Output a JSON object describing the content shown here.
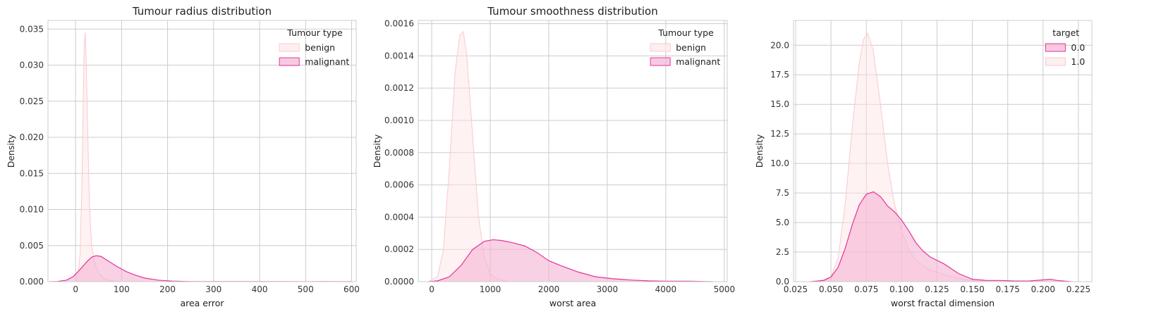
{
  "colors": {
    "benign_fill": "#fde2e4",
    "benign_line": "#f9c9cf",
    "malignant_fill": "#f5b3d4",
    "malignant_line": "#e3359a",
    "grid": "#cccccc",
    "frame": "#cccccc",
    "background": "#ffffff"
  },
  "chart_data": [
    {
      "type": "area",
      "title": "Tumour radius distribution",
      "xlabel": "area error",
      "ylabel": "Density",
      "xlim": [
        -60,
        610
      ],
      "ylim": [
        0,
        0.0362
      ],
      "xticks": [
        0,
        100,
        200,
        300,
        400,
        500,
        600
      ],
      "xtick_labels": [
        "0",
        "100",
        "200",
        "300",
        "400",
        "500",
        "600"
      ],
      "yticks": [
        0,
        0.005,
        0.01,
        0.015,
        0.02,
        0.025,
        0.03,
        0.035
      ],
      "ytick_labels": [
        "0.000",
        "0.005",
        "0.010",
        "0.015",
        "0.020",
        "0.025",
        "0.030",
        "0.035"
      ],
      "grid": true,
      "legend": {
        "title": "Tumour type",
        "position": "top-right",
        "entries": [
          "benign",
          "malignant"
        ]
      },
      "series": [
        {
          "name": "benign",
          "role": "benign",
          "x": [
            0,
            5,
            10,
            14,
            17,
            19,
            21,
            23,
            26,
            30,
            35,
            42,
            50,
            60,
            70,
            80,
            100
          ],
          "y": [
            0,
            0.0006,
            0.004,
            0.014,
            0.026,
            0.033,
            0.0345,
            0.031,
            0.022,
            0.011,
            0.005,
            0.0025,
            0.0012,
            0.0005,
            0.0003,
            0.0001,
            0
          ]
        },
        {
          "name": "malignant",
          "role": "malignant",
          "x": [
            -55,
            -40,
            -20,
            -5,
            10,
            25,
            35,
            45,
            55,
            70,
            90,
            110,
            130,
            150,
            180,
            210,
            250,
            300,
            400,
            500,
            540,
            600
          ],
          "y": [
            0,
            3e-05,
            0.0002,
            0.0007,
            0.0017,
            0.0028,
            0.0034,
            0.0036,
            0.0035,
            0.0029,
            0.0021,
            0.0014,
            0.0009,
            0.0005,
            0.0002,
            8e-05,
            2e-05,
            1e-05,
            1e-05,
            5e-06,
            2e-05,
            0
          ]
        }
      ]
    },
    {
      "type": "area",
      "title": "Tumour smoothness distribution",
      "xlabel": "worst area",
      "ylabel": "Density",
      "xlim": [
        -230,
        5050
      ],
      "ylim": [
        0,
        0.00162
      ],
      "xticks": [
        0,
        1000,
        2000,
        3000,
        4000,
        5000
      ],
      "xtick_labels": [
        "0",
        "1000",
        "2000",
        "3000",
        "4000",
        "5000"
      ],
      "yticks": [
        0,
        0.0002,
        0.0004,
        0.0006,
        0.0008,
        0.001,
        0.0012,
        0.0014,
        0.0016
      ],
      "ytick_labels": [
        "0.0000",
        "0.0002",
        "0.0004",
        "0.0006",
        "0.0008",
        "0.0010",
        "0.0012",
        "0.0014",
        "0.0016"
      ],
      "grid": true,
      "legend": {
        "title": "Tumour type",
        "position": "top-right",
        "entries": [
          "benign",
          "malignant"
        ]
      },
      "series": [
        {
          "name": "benign",
          "role": "benign",
          "x": [
            -60,
            100,
            200,
            300,
            400,
            480,
            540,
            600,
            700,
            800,
            900,
            1000,
            1100,
            1200,
            1300
          ],
          "y": [
            0,
            3e-05,
            0.0002,
            0.0007,
            0.0013,
            0.00153,
            0.00155,
            0.0014,
            0.0009,
            0.0004,
            0.00015,
            5e-05,
            2e-05,
            1e-05,
            0
          ]
        },
        {
          "name": "malignant",
          "role": "malignant",
          "x": [
            -50,
            100,
            300,
            500,
            700,
            900,
            1050,
            1200,
            1400,
            1600,
            1800,
            2000,
            2200,
            2500,
            2800,
            3100,
            3400,
            3700,
            4000,
            4400,
            4800
          ],
          "y": [
            0,
            5e-06,
            3e-05,
            0.0001,
            0.0002,
            0.00025,
            0.00026,
            0.000255,
            0.00024,
            0.00022,
            0.00018,
            0.00013,
            0.0001,
            6e-05,
            3e-05,
            1.8e-05,
            1e-05,
            5e-06,
            3e-06,
            3e-06,
            0
          ]
        }
      ]
    },
    {
      "type": "area",
      "title": "",
      "xlabel": "worst fractal dimension",
      "ylabel": "Density",
      "xlim": [
        0.0235,
        0.2345
      ],
      "ylim": [
        0,
        22.1
      ],
      "xticks": [
        0.025,
        0.05,
        0.075,
        0.1,
        0.125,
        0.15,
        0.175,
        0.2,
        0.225
      ],
      "xtick_labels": [
        "0.025",
        "0.050",
        "0.075",
        "0.100",
        "0.125",
        "0.150",
        "0.175",
        "0.200",
        "0.225"
      ],
      "yticks": [
        0,
        2.5,
        5,
        7.5,
        10,
        12.5,
        15,
        17.5,
        20
      ],
      "ytick_labels": [
        "0.0",
        "2.5",
        "5.0",
        "7.5",
        "10.0",
        "12.5",
        "15.0",
        "17.5",
        "20.0"
      ],
      "grid": true,
      "legend": {
        "title": "target",
        "position": "top-right",
        "entries": [
          "0.0",
          "1.0"
        ]
      },
      "series": [
        {
          "name": "0.0",
          "role": "malignant",
          "x": [
            0.035,
            0.045,
            0.05,
            0.055,
            0.06,
            0.065,
            0.07,
            0.075,
            0.08,
            0.085,
            0.09,
            0.095,
            0.1,
            0.105,
            0.11,
            0.115,
            0.12,
            0.125,
            0.13,
            0.135,
            0.14,
            0.15,
            0.16,
            0.17,
            0.18,
            0.19,
            0.2,
            0.205,
            0.21,
            0.22
          ],
          "y": [
            0,
            0.1,
            0.4,
            1.2,
            2.8,
            4.8,
            6.5,
            7.4,
            7.6,
            7.2,
            6.4,
            5.9,
            5.2,
            4.3,
            3.3,
            2.6,
            2.1,
            1.8,
            1.5,
            1.1,
            0.7,
            0.2,
            0.1,
            0.1,
            0.05,
            0.05,
            0.15,
            0.2,
            0.1,
            0
          ]
        },
        {
          "name": "1.0",
          "role": "benign",
          "x": [
            0.04,
            0.05,
            0.055,
            0.06,
            0.065,
            0.07,
            0.073,
            0.076,
            0.08,
            0.085,
            0.09,
            0.095,
            0.1,
            0.105,
            0.11,
            0.115,
            0.12,
            0.13,
            0.14,
            0.15,
            0.16
          ],
          "y": [
            0,
            0.4,
            2.0,
            6.5,
            13.0,
            18.5,
            20.5,
            21.0,
            19.5,
            15.0,
            10.0,
            6.5,
            4.3,
            2.7,
            1.8,
            1.4,
            1.0,
            0.6,
            0.3,
            0.1,
            0
          ]
        }
      ]
    }
  ]
}
